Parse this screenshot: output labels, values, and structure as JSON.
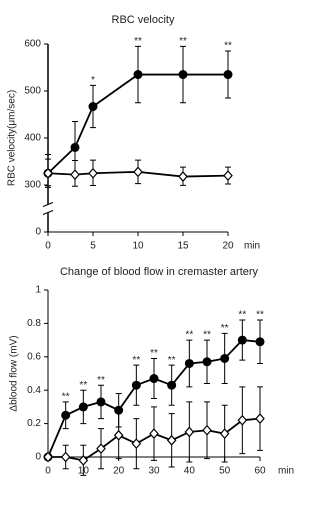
{
  "chart_data": [
    {
      "type": "line",
      "title": "RBC velocity",
      "y_label": "RBC velocity(μm/sec)",
      "x_unit": "min",
      "x": [
        0,
        3,
        5,
        10,
        15,
        20
      ],
      "xlim": [
        0,
        20
      ],
      "xticks": [
        0,
        5,
        10,
        15,
        20
      ],
      "ylim": [
        0,
        600
      ],
      "yticks": [
        0,
        300,
        400,
        500,
        600
      ],
      "y_break": true,
      "series": [
        {
          "color": "#000000",
          "marker": "circle",
          "values": [
            325,
            380,
            467,
            535,
            535,
            535
          ],
          "errors": [
            40,
            55,
            45,
            60,
            60,
            50
          ]
        },
        {
          "color": "#000000",
          "marker": "diamond",
          "values": [
            325,
            322,
            325,
            328,
            318,
            320
          ],
          "errors": [
            30,
            30,
            28,
            25,
            20,
            18
          ]
        }
      ],
      "annotations": [
        {
          "x": 5,
          "text": "*"
        },
        {
          "x": 10,
          "text": "**"
        },
        {
          "x": 15,
          "text": "**"
        },
        {
          "x": 20,
          "text": "**"
        }
      ]
    },
    {
      "type": "line",
      "title": "Change of blood flow in cremaster artery",
      "y_label": "Δblood flow (mV)",
      "x_unit": "min",
      "x": [
        0,
        5,
        10,
        15,
        20,
        25,
        30,
        35,
        40,
        45,
        50,
        55,
        60
      ],
      "xlim": [
        0,
        60
      ],
      "xticks": [
        0,
        10,
        20,
        30,
        40,
        50,
        60
      ],
      "ylim": [
        0,
        1
      ],
      "yticks": [
        0,
        0.2,
        0.4,
        0.6,
        0.8,
        1
      ],
      "series": [
        {
          "color": "#000000",
          "marker": "circle",
          "values": [
            0,
            0.25,
            0.3,
            0.33,
            0.28,
            0.43,
            0.47,
            0.43,
            0.56,
            0.57,
            0.59,
            0.7,
            0.69
          ],
          "errors": [
            0,
            0.08,
            0.1,
            0.1,
            0.1,
            0.12,
            0.12,
            0.12,
            0.14,
            0.13,
            0.15,
            0.12,
            0.13
          ]
        },
        {
          "color": "#000000",
          "marker": "diamond",
          "values": [
            0,
            0.0,
            -0.02,
            0.05,
            0.13,
            0.08,
            0.14,
            0.1,
            0.15,
            0.16,
            0.14,
            0.22,
            0.23
          ],
          "errors": [
            0,
            0.07,
            0.09,
            0.12,
            0.14,
            0.15,
            0.16,
            0.16,
            0.18,
            0.17,
            0.17,
            0.2,
            0.19
          ]
        }
      ],
      "annotations": [
        {
          "x": 5,
          "text": "**"
        },
        {
          "x": 10,
          "text": "**"
        },
        {
          "x": 15,
          "text": "**"
        },
        {
          "x": 25,
          "text": "**"
        },
        {
          "x": 30,
          "text": "**"
        },
        {
          "x": 35,
          "text": "**"
        },
        {
          "x": 40,
          "text": "**"
        },
        {
          "x": 45,
          "text": "**"
        },
        {
          "x": 50,
          "text": "**"
        },
        {
          "x": 55,
          "text": "**"
        },
        {
          "x": 60,
          "text": "**"
        }
      ]
    }
  ]
}
